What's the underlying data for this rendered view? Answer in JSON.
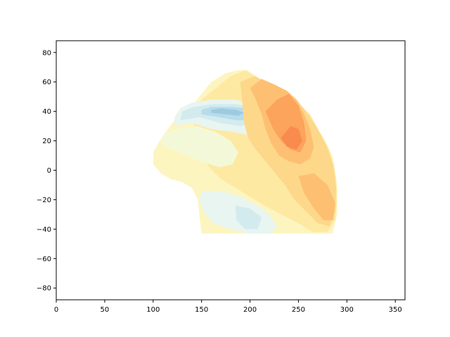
{
  "chart_data": {
    "type": "contour",
    "title": "",
    "xlabel": "",
    "ylabel": "",
    "xlim": [
      0,
      360
    ],
    "ylim": [
      -88,
      88
    ],
    "x_ticks": [
      0,
      50,
      100,
      150,
      200,
      250,
      300,
      350
    ],
    "y_ticks": [
      -80,
      -60,
      -40,
      -20,
      0,
      20,
      40,
      60,
      80
    ],
    "grid": false,
    "legend": "none",
    "colors": {
      "deep_blue": "#9ecae1",
      "mid_blue": "#b7dcea",
      "light_blue": "#d3ebef",
      "pale_blue": "#e8f5f0",
      "pale_green": "#f3f9d8",
      "pale_yellow": "#fdf5c0",
      "light_yellow": "#fee9a3",
      "yellow_orange": "#fdd88a",
      "light_orange": "#fdc073",
      "orange": "#fca35c",
      "deep_orange": "#f98b4f"
    },
    "regions": [
      {
        "level": "pale_yellow",
        "lonlat": [
          [
            100,
            12
          ],
          [
            105,
            18
          ],
          [
            112,
            25
          ],
          [
            122,
            34
          ],
          [
            130,
            41
          ],
          [
            143,
            46
          ],
          [
            150,
            52
          ],
          [
            160,
            60
          ],
          [
            175,
            66
          ],
          [
            188,
            68
          ],
          [
            197,
            68
          ],
          [
            210,
            62
          ],
          [
            222,
            56
          ],
          [
            235,
            52
          ],
          [
            245,
            48
          ],
          [
            256,
            40
          ],
          [
            266,
            32
          ],
          [
            276,
            22
          ],
          [
            286,
            8
          ],
          [
            290,
            -10
          ],
          [
            290,
            -30
          ],
          [
            285,
            -43
          ],
          [
            150,
            -43
          ],
          [
            148,
            -32
          ],
          [
            146,
            -20
          ],
          [
            140,
            -12
          ],
          [
            130,
            -8
          ],
          [
            118,
            -6
          ],
          [
            108,
            -2
          ],
          [
            100,
            4
          ]
        ]
      },
      {
        "level": "light_yellow",
        "lonlat": [
          [
            150,
            48
          ],
          [
            165,
            56
          ],
          [
            180,
            64
          ],
          [
            195,
            68
          ],
          [
            210,
            62
          ],
          [
            225,
            56
          ],
          [
            240,
            52
          ],
          [
            250,
            45
          ],
          [
            262,
            38
          ],
          [
            272,
            26
          ],
          [
            282,
            14
          ],
          [
            288,
            -2
          ],
          [
            290,
            -18
          ],
          [
            288,
            -34
          ],
          [
            280,
            -42
          ],
          [
            265,
            -42
          ],
          [
            250,
            -36
          ],
          [
            232,
            -30
          ],
          [
            215,
            -24
          ],
          [
            200,
            -18
          ],
          [
            185,
            -12
          ],
          [
            170,
            -6
          ],
          [
            158,
            2
          ],
          [
            150,
            10
          ],
          [
            145,
            20
          ],
          [
            142,
            32
          ],
          [
            145,
            42
          ]
        ]
      },
      {
        "level": "pale_green",
        "lonlat": [
          [
            110,
            24
          ],
          [
            125,
            28
          ],
          [
            145,
            30
          ],
          [
            165,
            26
          ],
          [
            180,
            20
          ],
          [
            188,
            12
          ],
          [
            182,
            4
          ],
          [
            168,
            2
          ],
          [
            150,
            6
          ],
          [
            135,
            10
          ],
          [
            120,
            14
          ],
          [
            108,
            18
          ]
        ]
      },
      {
        "level": "pale_blue",
        "lonlat": [
          [
            150,
            -14
          ],
          [
            170,
            -14
          ],
          [
            190,
            -18
          ],
          [
            208,
            -24
          ],
          [
            220,
            -30
          ],
          [
            228,
            -38
          ],
          [
            222,
            -43
          ],
          [
            200,
            -43
          ],
          [
            180,
            -40
          ],
          [
            162,
            -36
          ],
          [
            152,
            -28
          ],
          [
            148,
            -20
          ]
        ]
      },
      {
        "level": "light_blue",
        "lonlat": [
          [
            185,
            -24
          ],
          [
            200,
            -26
          ],
          [
            212,
            -32
          ],
          [
            208,
            -40
          ],
          [
            195,
            -40
          ],
          [
            186,
            -34
          ]
        ]
      },
      {
        "level": "pale_blue",
        "lonlat": [
          [
            122,
            30
          ],
          [
            140,
            32
          ],
          [
            160,
            28
          ],
          [
            182,
            26
          ],
          [
            198,
            24
          ],
          [
            208,
            28
          ],
          [
            212,
            34
          ],
          [
            210,
            42
          ],
          [
            200,
            46
          ],
          [
            182,
            48
          ],
          [
            160,
            48
          ],
          [
            140,
            46
          ],
          [
            128,
            42
          ],
          [
            122,
            36
          ]
        ]
      },
      {
        "level": "light_blue",
        "lonlat": [
          [
            128,
            34
          ],
          [
            148,
            36
          ],
          [
            170,
            32
          ],
          [
            190,
            30
          ],
          [
            204,
            32
          ],
          [
            208,
            38
          ],
          [
            202,
            43
          ],
          [
            185,
            45
          ],
          [
            162,
            45
          ],
          [
            142,
            43
          ],
          [
            130,
            40
          ]
        ]
      },
      {
        "level": "mid_blue",
        "lonlat": [
          [
            150,
            38
          ],
          [
            168,
            36
          ],
          [
            186,
            34
          ],
          [
            200,
            34
          ],
          [
            204,
            38
          ],
          [
            198,
            42
          ],
          [
            180,
            43
          ],
          [
            160,
            43
          ],
          [
            150,
            41
          ]
        ]
      },
      {
        "level": "deep_blue",
        "lonlat": [
          [
            160,
            39
          ],
          [
            175,
            38
          ],
          [
            188,
            37
          ],
          [
            194,
            39
          ],
          [
            186,
            41
          ],
          [
            170,
            42
          ],
          [
            160,
            41
          ]
        ]
      },
      {
        "level": "yellow_orange",
        "lonlat": [
          [
            190,
            60
          ],
          [
            205,
            64
          ],
          [
            222,
            58
          ],
          [
            236,
            54
          ],
          [
            248,
            48
          ],
          [
            258,
            40
          ],
          [
            268,
            30
          ],
          [
            278,
            18
          ],
          [
            286,
            4
          ],
          [
            289,
            -12
          ],
          [
            288,
            -28
          ],
          [
            282,
            -38
          ],
          [
            270,
            -36
          ],
          [
            258,
            -28
          ],
          [
            246,
            -20
          ],
          [
            236,
            -10
          ],
          [
            226,
            -2
          ],
          [
            216,
            6
          ],
          [
            206,
            14
          ],
          [
            198,
            22
          ],
          [
            194,
            32
          ],
          [
            192,
            46
          ]
        ]
      },
      {
        "level": "light_orange",
        "lonlat": [
          [
            200,
            56
          ],
          [
            212,
            62
          ],
          [
            226,
            58
          ],
          [
            238,
            54
          ],
          [
            248,
            48
          ],
          [
            256,
            38
          ],
          [
            262,
            28
          ],
          [
            266,
            16
          ],
          [
            262,
            8
          ],
          [
            252,
            4
          ],
          [
            240,
            6
          ],
          [
            230,
            10
          ],
          [
            222,
            18
          ],
          [
            216,
            28
          ],
          [
            212,
            38
          ],
          [
            206,
            48
          ]
        ]
      },
      {
        "level": "light_orange",
        "lonlat": [
          [
            250,
            -4
          ],
          [
            266,
            -2
          ],
          [
            280,
            -10
          ],
          [
            288,
            -22
          ],
          [
            286,
            -34
          ],
          [
            276,
            -34
          ],
          [
            266,
            -26
          ],
          [
            256,
            -16
          ]
        ]
      },
      {
        "level": "orange",
        "lonlat": [
          [
            216,
            40
          ],
          [
            228,
            48
          ],
          [
            240,
            52
          ],
          [
            250,
            44
          ],
          [
            256,
            32
          ],
          [
            258,
            20
          ],
          [
            252,
            12
          ],
          [
            242,
            14
          ],
          [
            232,
            20
          ],
          [
            224,
            28
          ]
        ]
      },
      {
        "level": "deep_orange",
        "lonlat": [
          [
            232,
            22
          ],
          [
            242,
            30
          ],
          [
            250,
            28
          ],
          [
            254,
            20
          ],
          [
            248,
            14
          ],
          [
            238,
            16
          ]
        ]
      }
    ]
  }
}
